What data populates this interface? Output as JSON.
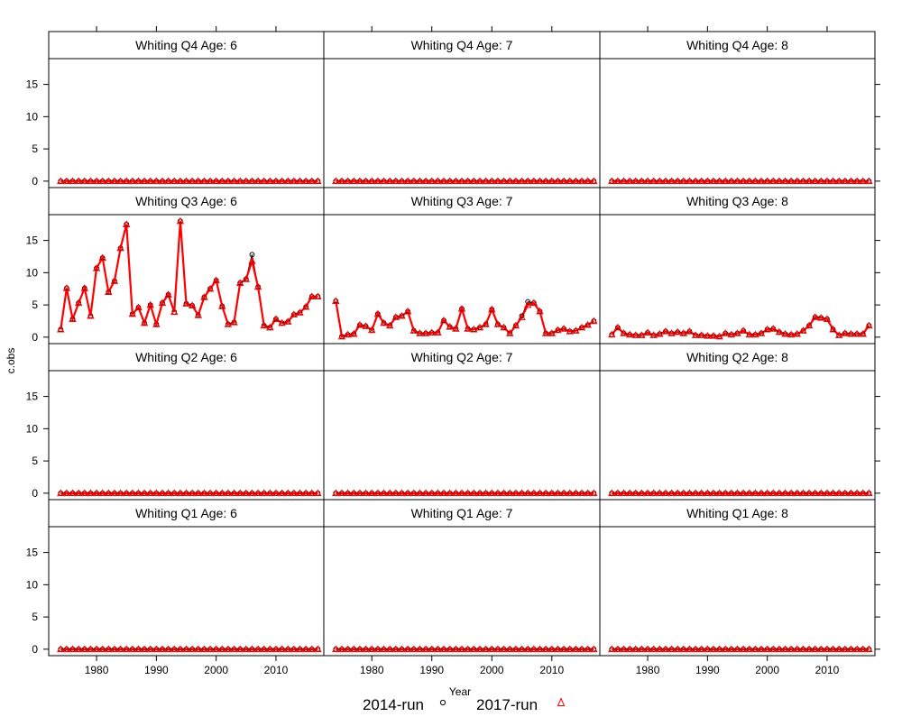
{
  "chart_data": {
    "type": "line",
    "layout": "trellis",
    "xlabel": "Year",
    "ylabel": "c.obs",
    "xlim": [
      1972,
      2018
    ],
    "ylim": [
      -1,
      19
    ],
    "x_ticks": [
      1980,
      1990,
      2000,
      2010
    ],
    "y_ticks": [
      0,
      5,
      10,
      15
    ],
    "grid": false,
    "legend": {
      "placement": "bottom",
      "entries": [
        {
          "name": "2014-run",
          "symbol": "circle",
          "color": "#000000"
        },
        {
          "name": "2017-run",
          "symbol": "triangle",
          "color": "#ff0000"
        }
      ]
    },
    "line_color": "#ff0000",
    "panels": [
      {
        "title": "Whiting Q4 Age: 6",
        "row": 0,
        "col": 0,
        "x_start": 1974,
        "runs": {
          "2014-run": [
            0,
            0,
            0,
            0,
            0,
            0,
            0,
            0,
            0,
            0,
            0,
            0,
            0,
            0,
            0,
            0,
            0,
            0,
            0,
            0,
            0,
            0,
            0,
            0,
            0,
            0,
            0,
            0,
            0,
            0,
            0,
            0,
            0,
            0,
            0,
            0,
            0,
            0,
            0,
            0,
            0,
            0,
            0,
            0
          ],
          "2017-run": [
            0,
            0,
            0,
            0,
            0,
            0,
            0,
            0,
            0,
            0,
            0,
            0,
            0,
            0,
            0,
            0,
            0,
            0,
            0,
            0,
            0,
            0,
            0,
            0,
            0,
            0,
            0,
            0,
            0,
            0,
            0,
            0,
            0,
            0,
            0,
            0,
            0,
            0,
            0,
            0,
            0,
            0,
            0,
            0
          ]
        }
      },
      {
        "title": "Whiting Q4 Age: 7",
        "row": 0,
        "col": 1,
        "x_start": 1974,
        "runs": {
          "2014-run": [
            0,
            0,
            0,
            0,
            0,
            0,
            0,
            0,
            0,
            0,
            0,
            0,
            0,
            0,
            0,
            0,
            0,
            0,
            0,
            0,
            0,
            0,
            0,
            0,
            0,
            0,
            0,
            0,
            0,
            0,
            0,
            0,
            0,
            0,
            0,
            0,
            0,
            0,
            0,
            0,
            0,
            0,
            0,
            0
          ],
          "2017-run": [
            0,
            0,
            0,
            0,
            0,
            0,
            0,
            0,
            0,
            0,
            0,
            0,
            0,
            0,
            0,
            0,
            0,
            0,
            0,
            0,
            0,
            0,
            0,
            0,
            0,
            0,
            0,
            0,
            0,
            0,
            0,
            0,
            0,
            0,
            0,
            0,
            0,
            0,
            0,
            0,
            0,
            0,
            0,
            0
          ]
        }
      },
      {
        "title": "Whiting Q4 Age: 8",
        "row": 0,
        "col": 2,
        "x_start": 1974,
        "runs": {
          "2014-run": [
            0,
            0,
            0,
            0,
            0,
            0,
            0,
            0,
            0,
            0,
            0,
            0,
            0,
            0,
            0,
            0,
            0,
            0,
            0,
            0,
            0,
            0,
            0,
            0,
            0,
            0,
            0,
            0,
            0,
            0,
            0,
            0,
            0,
            0,
            0,
            0,
            0,
            0,
            0,
            0,
            0,
            0,
            0,
            0
          ],
          "2017-run": [
            0,
            0,
            0,
            0,
            0,
            0,
            0,
            0,
            0,
            0,
            0,
            0,
            0,
            0,
            0,
            0,
            0,
            0,
            0,
            0,
            0,
            0,
            0,
            0,
            0,
            0,
            0,
            0,
            0,
            0,
            0,
            0,
            0,
            0,
            0,
            0,
            0,
            0,
            0,
            0,
            0,
            0,
            0,
            0
          ]
        }
      },
      {
        "title": "Whiting Q3 Age: 6",
        "row": 1,
        "col": 0,
        "x_start": 1974,
        "runs": {
          "2014-run": [
            1.2,
            7.6,
            2.8,
            5.3,
            7.6,
            3.3,
            10.7,
            12.3,
            7.0,
            8.7,
            13.8,
            17.5,
            3.6,
            4.6,
            2.2,
            5.0,
            2.0,
            5.3,
            6.6,
            3.9,
            18.0,
            5.2,
            4.9,
            3.4,
            6.2,
            7.5,
            8.8,
            4.8,
            2.0,
            2.3,
            8.4,
            9.0,
            12.8,
            7.8,
            1.8,
            1.5,
            2.8,
            2.2,
            2.4,
            3.5,
            3.8,
            4.7,
            6.3,
            6.3
          ],
          "2017-run": [
            1.2,
            7.6,
            2.8,
            5.3,
            7.6,
            3.3,
            10.7,
            12.3,
            7.0,
            8.7,
            13.8,
            17.5,
            3.6,
            4.6,
            2.2,
            5.0,
            2.0,
            5.3,
            6.6,
            3.9,
            18.0,
            5.2,
            4.9,
            3.4,
            6.2,
            7.5,
            8.8,
            4.8,
            2.0,
            2.3,
            8.4,
            9.0,
            11.8,
            7.8,
            1.8,
            1.5,
            2.8,
            2.2,
            2.4,
            3.5,
            3.8,
            4.7,
            6.3,
            6.3
          ]
        }
      },
      {
        "title": "Whiting Q3 Age: 7",
        "row": 1,
        "col": 1,
        "x_start": 1974,
        "runs": {
          "2014-run": [
            5.6,
            0.1,
            0.4,
            0.5,
            1.9,
            1.7,
            1.1,
            3.6,
            2.2,
            1.8,
            3.1,
            3.3,
            4.0,
            1.0,
            0.6,
            0.6,
            0.7,
            0.7,
            2.6,
            1.6,
            1.3,
            4.4,
            1.3,
            1.2,
            1.5,
            2.0,
            4.3,
            2.0,
            1.5,
            0.6,
            1.8,
            3.3,
            5.5,
            5.3,
            4.0,
            0.6,
            0.6,
            1.1,
            1.3,
            0.9,
            1.0,
            1.5,
            1.9,
            2.5
          ],
          "2017-run": [
            5.6,
            0.1,
            0.4,
            0.5,
            1.9,
            1.7,
            1.1,
            3.6,
            2.2,
            1.8,
            3.1,
            3.3,
            4.0,
            1.0,
            0.6,
            0.6,
            0.7,
            0.7,
            2.6,
            1.6,
            1.3,
            4.4,
            1.3,
            1.2,
            1.5,
            2.0,
            4.3,
            2.0,
            1.5,
            0.6,
            1.8,
            3.1,
            5.0,
            5.3,
            4.0,
            0.6,
            0.6,
            1.1,
            1.3,
            0.9,
            1.0,
            1.5,
            1.9,
            2.5
          ]
        }
      },
      {
        "title": "Whiting Q3 Age: 8",
        "row": 1,
        "col": 2,
        "x_start": 1974,
        "runs": {
          "2014-run": [
            0.4,
            1.5,
            0.6,
            0.4,
            0.3,
            0.3,
            0.7,
            0.3,
            0.5,
            0.9,
            0.6,
            0.8,
            0.6,
            0.9,
            0.3,
            0.3,
            0.2,
            0.2,
            0.1,
            0.6,
            0.4,
            0.6,
            1.0,
            0.4,
            0.4,
            0.6,
            1.2,
            1.3,
            0.8,
            0.5,
            0.4,
            0.5,
            1.0,
            1.8,
            3.1,
            3.0,
            2.8,
            1.2,
            0.3,
            0.6,
            0.5,
            0.5,
            0.5,
            1.8
          ],
          "2017-run": [
            0.4,
            1.5,
            0.6,
            0.4,
            0.3,
            0.3,
            0.7,
            0.3,
            0.5,
            0.9,
            0.6,
            0.8,
            0.6,
            0.9,
            0.3,
            0.3,
            0.2,
            0.2,
            0.1,
            0.6,
            0.4,
            0.6,
            1.0,
            0.4,
            0.4,
            0.6,
            1.2,
            1.3,
            0.8,
            0.5,
            0.4,
            0.5,
            1.0,
            1.8,
            3.1,
            3.0,
            2.8,
            1.2,
            0.3,
            0.6,
            0.5,
            0.5,
            0.5,
            1.8
          ]
        }
      },
      {
        "title": "Whiting Q2 Age: 6",
        "row": 2,
        "col": 0,
        "x_start": 1974,
        "runs": {
          "2014-run": [
            0,
            0,
            0,
            0,
            0,
            0,
            0,
            0,
            0,
            0,
            0,
            0,
            0,
            0,
            0,
            0,
            0,
            0,
            0,
            0,
            0,
            0,
            0,
            0,
            0,
            0,
            0,
            0,
            0,
            0,
            0,
            0,
            0,
            0,
            0,
            0,
            0,
            0,
            0,
            0,
            0,
            0,
            0,
            0
          ],
          "2017-run": [
            0,
            0,
            0,
            0,
            0,
            0,
            0,
            0,
            0,
            0,
            0,
            0,
            0,
            0,
            0,
            0,
            0,
            0,
            0,
            0,
            0,
            0,
            0,
            0,
            0,
            0,
            0,
            0,
            0,
            0,
            0,
            0,
            0,
            0,
            0,
            0,
            0,
            0,
            0,
            0,
            0,
            0,
            0,
            0
          ]
        }
      },
      {
        "title": "Whiting Q2 Age: 7",
        "row": 2,
        "col": 1,
        "x_start": 1974,
        "runs": {
          "2014-run": [
            0,
            0,
            0,
            0,
            0,
            0,
            0,
            0,
            0,
            0,
            0,
            0,
            0,
            0,
            0,
            0,
            0,
            0,
            0,
            0,
            0,
            0,
            0,
            0,
            0,
            0,
            0,
            0,
            0,
            0,
            0,
            0,
            0,
            0,
            0,
            0,
            0,
            0,
            0,
            0,
            0,
            0,
            0,
            0
          ],
          "2017-run": [
            0,
            0,
            0,
            0,
            0,
            0,
            0,
            0,
            0,
            0,
            0,
            0,
            0,
            0,
            0,
            0,
            0,
            0,
            0,
            0,
            0,
            0,
            0,
            0,
            0,
            0,
            0,
            0,
            0,
            0,
            0,
            0,
            0,
            0,
            0,
            0,
            0,
            0,
            0,
            0,
            0,
            0,
            0,
            0
          ]
        }
      },
      {
        "title": "Whiting Q2 Age: 8",
        "row": 2,
        "col": 2,
        "x_start": 1974,
        "runs": {
          "2014-run": [
            0,
            0,
            0,
            0,
            0,
            0,
            0,
            0,
            0,
            0,
            0,
            0,
            0,
            0,
            0,
            0,
            0,
            0,
            0,
            0,
            0,
            0,
            0,
            0,
            0,
            0,
            0,
            0,
            0,
            0,
            0,
            0,
            0,
            0,
            0,
            0,
            0,
            0,
            0,
            0,
            0,
            0,
            0,
            0
          ],
          "2017-run": [
            0,
            0,
            0,
            0,
            0,
            0,
            0,
            0,
            0,
            0,
            0,
            0,
            0,
            0,
            0,
            0,
            0,
            0,
            0,
            0,
            0,
            0,
            0,
            0,
            0,
            0,
            0,
            0,
            0,
            0,
            0,
            0,
            0,
            0,
            0,
            0,
            0,
            0,
            0,
            0,
            0,
            0,
            0,
            0
          ]
        }
      },
      {
        "title": "Whiting Q1 Age: 6",
        "row": 3,
        "col": 0,
        "x_start": 1974,
        "runs": {
          "2014-run": [
            0,
            0,
            0,
            0,
            0,
            0,
            0,
            0,
            0,
            0,
            0,
            0,
            0,
            0,
            0,
            0,
            0,
            0,
            0,
            0,
            0,
            0,
            0,
            0,
            0,
            0,
            0,
            0,
            0,
            0,
            0,
            0,
            0,
            0,
            0,
            0,
            0,
            0,
            0,
            0,
            0,
            0,
            0,
            0
          ],
          "2017-run": [
            0,
            0,
            0,
            0,
            0,
            0,
            0,
            0,
            0,
            0,
            0,
            0,
            0,
            0,
            0,
            0,
            0,
            0,
            0,
            0,
            0,
            0,
            0,
            0,
            0,
            0,
            0,
            0,
            0,
            0,
            0,
            0,
            0,
            0,
            0,
            0,
            0,
            0,
            0,
            0,
            0,
            0,
            0,
            0
          ]
        }
      },
      {
        "title": "Whiting Q1 Age: 7",
        "row": 3,
        "col": 1,
        "x_start": 1974,
        "runs": {
          "2014-run": [
            0,
            0,
            0,
            0,
            0,
            0,
            0,
            0,
            0,
            0,
            0,
            0,
            0,
            0,
            0,
            0,
            0,
            0,
            0,
            0,
            0,
            0,
            0,
            0,
            0,
            0,
            0,
            0,
            0,
            0,
            0,
            0,
            0,
            0,
            0,
            0,
            0,
            0,
            0,
            0,
            0,
            0,
            0,
            0
          ],
          "2017-run": [
            0,
            0,
            0,
            0,
            0,
            0,
            0,
            0,
            0,
            0,
            0,
            0,
            0,
            0,
            0,
            0,
            0,
            0,
            0,
            0,
            0,
            0,
            0,
            0,
            0,
            0,
            0,
            0,
            0,
            0,
            0,
            0,
            0,
            0,
            0,
            0,
            0,
            0,
            0,
            0,
            0,
            0,
            0,
            0
          ]
        }
      },
      {
        "title": "Whiting Q1 Age: 8",
        "row": 3,
        "col": 2,
        "x_start": 1974,
        "runs": {
          "2014-run": [
            0,
            0,
            0,
            0,
            0,
            0,
            0,
            0,
            0,
            0,
            0,
            0,
            0,
            0,
            0,
            0,
            0,
            0,
            0,
            0,
            0,
            0,
            0,
            0,
            0,
            0,
            0,
            0,
            0,
            0,
            0,
            0,
            0,
            0,
            0,
            0,
            0,
            0,
            0,
            0,
            0,
            0,
            0,
            0
          ],
          "2017-run": [
            0,
            0,
            0,
            0,
            0,
            0,
            0,
            0,
            0,
            0,
            0,
            0,
            0,
            0,
            0,
            0,
            0,
            0,
            0,
            0,
            0,
            0,
            0,
            0,
            0,
            0,
            0,
            0,
            0,
            0,
            0,
            0,
            0,
            0,
            0,
            0,
            0,
            0,
            0,
            0,
            0,
            0,
            0,
            0
          ]
        }
      }
    ]
  }
}
